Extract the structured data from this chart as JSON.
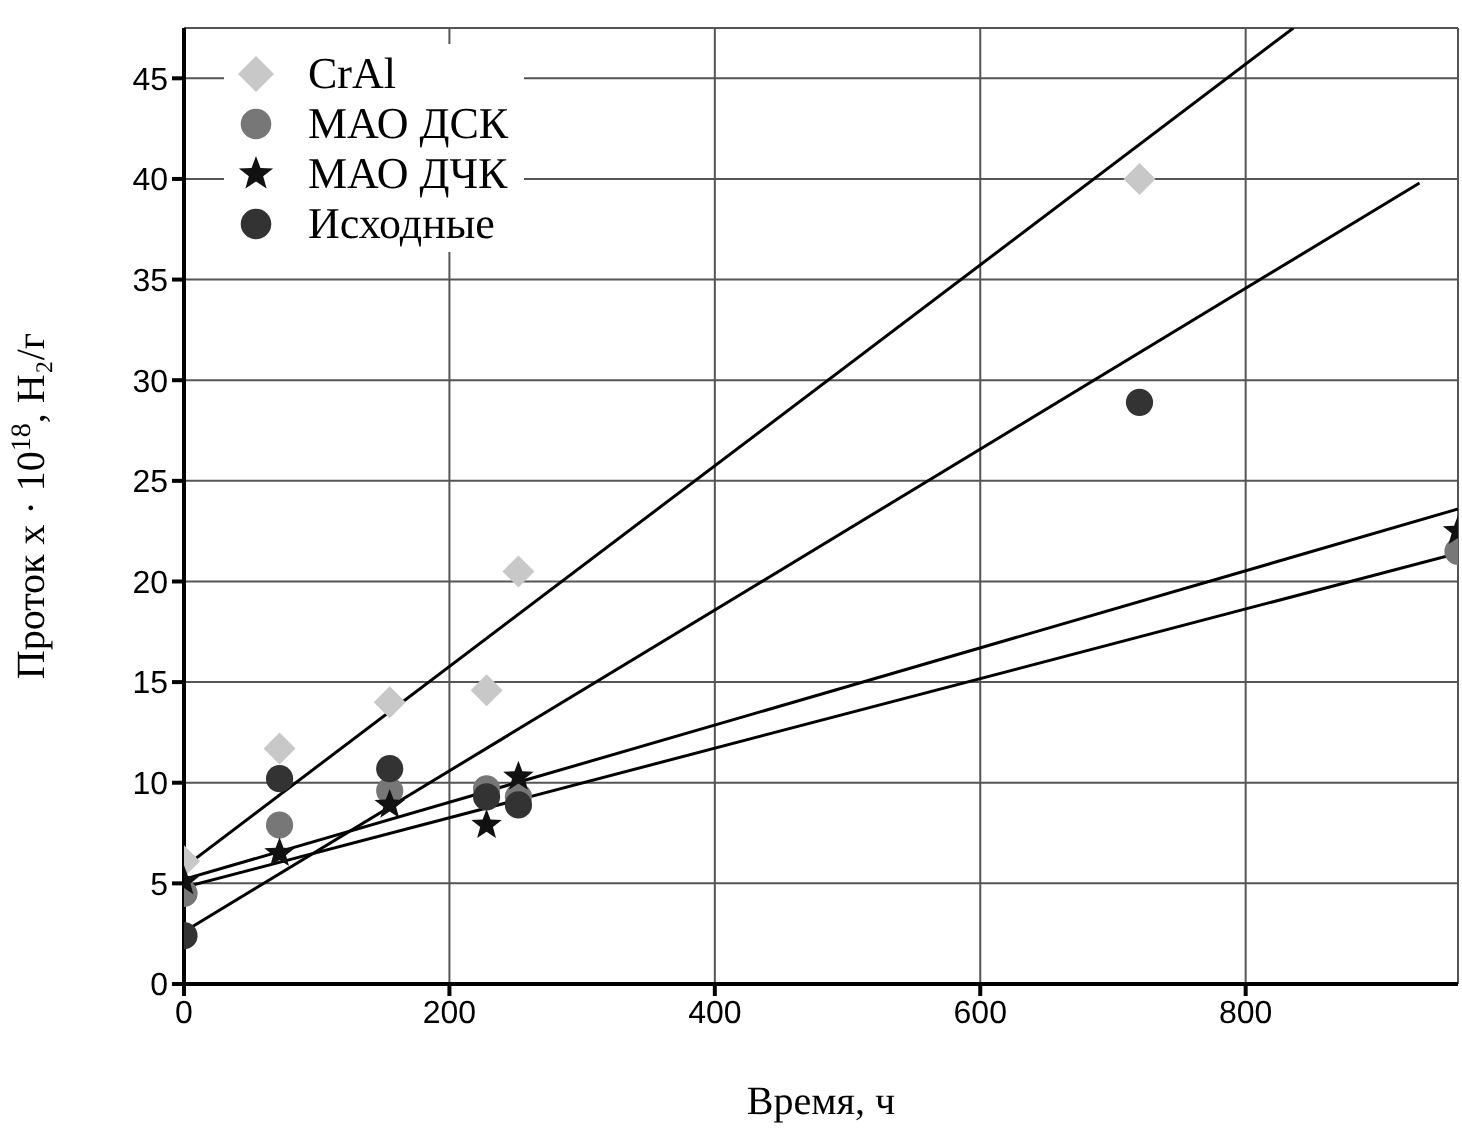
{
  "chart_data": {
    "type": "scatter",
    "xlabel": "Время, ч",
    "ylabel": "Проток x · 10$^{18}$, H₂/г",
    "xlim": [
      0,
      960
    ],
    "ylim": [
      0,
      47.5
    ],
    "xticks": [
      0,
      200,
      400,
      600,
      800
    ],
    "yticks": [
      0,
      5,
      10,
      15,
      20,
      25,
      30,
      35,
      40,
      45
    ],
    "grid": true,
    "legend": "top left",
    "series": [
      {
        "name": "CrAl",
        "color": "#c8c8c8",
        "marker": "diamond",
        "x": [
          0,
          72,
          155,
          228,
          252,
          720
        ],
        "values": [
          6.1,
          11.7,
          14,
          14.6,
          20.5,
          40
        ]
      },
      {
        "name": "МАО ДСК",
        "color": "#777777",
        "marker": "circle",
        "x": [
          0,
          72,
          155,
          228,
          252,
          960
        ],
        "values": [
          4.5,
          7.9,
          9.6,
          9.7,
          9.3,
          21.5
        ]
      },
      {
        "name": "МАО ДЧК",
        "color": "#111111",
        "marker": "star",
        "x": [
          0,
          72,
          155,
          228,
          252,
          960
        ],
        "values": [
          5.1,
          6.5,
          8.9,
          7.9,
          10.3,
          22.5
        ]
      },
      {
        "name": "Исходные",
        "color": "#333333",
        "marker": "circle",
        "x": [
          0,
          72,
          155,
          228,
          252,
          720
        ],
        "values": [
          2.4,
          10.2,
          10.7,
          9.3,
          8.9,
          28.9
        ]
      },
      {
        "type": "line",
        "color": "#000000",
        "marker": "none",
        "x": [
          0,
          836
        ],
        "values": [
          5.8,
          47.5
        ]
      },
      {
        "type": "line",
        "color": "#000000",
        "marker": "none",
        "x": [
          0,
          931
        ],
        "values": [
          2.6,
          39.8
        ]
      },
      {
        "type": "line",
        "color": "#000000",
        "marker": "none",
        "x": [
          0,
          960
        ],
        "values": [
          5.2,
          23.6
        ]
      },
      {
        "type": "line",
        "color": "#000000",
        "marker": "none",
        "x": [
          0,
          960
        ],
        "values": [
          4.8,
          21.4
        ]
      }
    ]
  }
}
